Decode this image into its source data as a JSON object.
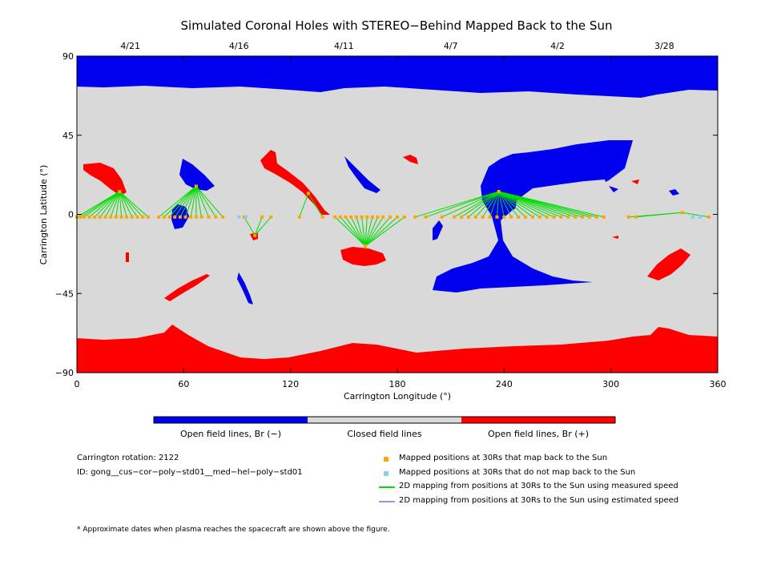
{
  "chart_data": {
    "type": "scatter",
    "title": "Simulated Coronal Holes with STEREO−Behind Mapped Back to the Sun",
    "xlabel": "Carrington Longitude (°)",
    "ylabel": "Carrington Latitude (°)",
    "xlim": [
      0,
      360
    ],
    "ylim": [
      -90,
      90
    ],
    "x_ticks": [
      "0",
      "60",
      "120",
      "180",
      "240",
      "300",
      "360"
    ],
    "y_ticks": [
      "90",
      "45",
      "0",
      "−45",
      "−90"
    ],
    "top_axis": {
      "labels": [
        "4/21",
        "4/16",
        "4/11",
        "4/7",
        "4/2",
        "3/28"
      ],
      "longitudes": [
        30,
        91,
        150,
        210,
        270,
        330
      ]
    },
    "colors": {
      "open_negative": "#0000ee",
      "closed": "#d9d9d9",
      "open_positive": "#ff0000",
      "mapped": "#ffa500",
      "not_mapped": "#87cefa",
      "measured_line": "#00dd00",
      "estimated_line": "#b487e6"
    },
    "colorbar": [
      {
        "label": "Open field lines, Br (−)"
      },
      {
        "label": "Closed field lines"
      },
      {
        "label": "Open field lines, Br (+)"
      }
    ],
    "mapping_groups": [
      {
        "source": [
          24,
          13
        ],
        "targets": [
          0,
          2,
          4,
          7,
          10,
          13,
          16,
          19,
          22,
          25,
          28,
          31,
          34,
          37,
          40
        ]
      },
      {
        "source": [
          67,
          16
        ],
        "targets": [
          46,
          49,
          52,
          55,
          58,
          61,
          64,
          67,
          70,
          74,
          78,
          82
        ]
      },
      {
        "source": [
          100,
          -12
        ],
        "targets": [
          94,
          104,
          109
        ]
      },
      {
        "source": [
          130,
          12
        ],
        "targets": [
          125,
          138
        ]
      },
      {
        "source": [
          162,
          -18
        ],
        "targets": [
          145,
          148,
          151,
          154,
          157,
          160,
          163,
          166,
          169,
          172,
          176,
          180,
          184
        ]
      },
      {
        "source": [
          237,
          13
        ],
        "targets": [
          190,
          196,
          205,
          212,
          216,
          220,
          224,
          228,
          232,
          236,
          240,
          244,
          248,
          252,
          256,
          260,
          264,
          268,
          272,
          276,
          280,
          284,
          288,
          292,
          296
        ]
      },
      {
        "source": [
          340,
          1
        ],
        "targets": [
          310,
          314,
          355
        ]
      }
    ],
    "unmapped_longitudes": [
      91,
      95,
      346,
      350
    ]
  },
  "legend": {
    "mapped": "Mapped positions at 30Rs that map back to the Sun",
    "not_mapped": "Mapped positions at 30Rs that do not map back to the Sun",
    "measured": "2D mapping from positions at 30Rs to the Sun using measured speed",
    "estimated": "2D mapping from positions at 30Rs to the Sun using estimated speed"
  },
  "info": {
    "rotation": "Carrington rotation: 2122",
    "id": "ID: gong__cus−cor−poly−std01__med−hel−poly−std01",
    "footnote": "* Approximate dates when plasma reaches the spacecraft are shown above the figure."
  }
}
